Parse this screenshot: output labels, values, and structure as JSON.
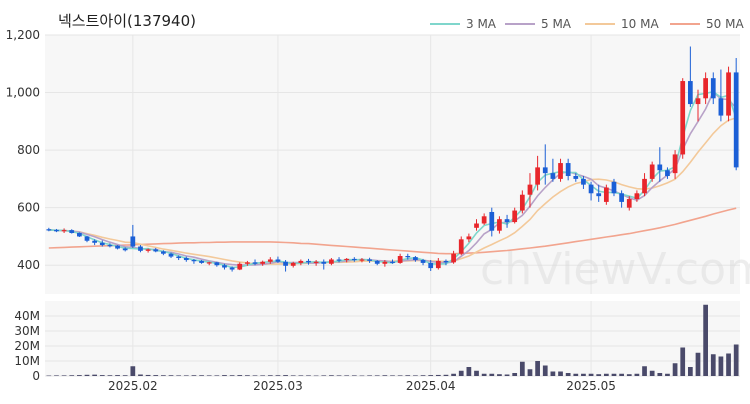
{
  "chart_data": {
    "type": "candlestick",
    "title": "넥스트아이(137940)",
    "watermark": "chViewV.com",
    "price_axis": {
      "min": 300,
      "max": 1200,
      "ticks": [
        400,
        600,
        800,
        1000,
        1200
      ],
      "tick_labels": [
        "400",
        "600",
        "800",
        "1,000",
        "1,200"
      ]
    },
    "volume_axis": {
      "min": 0,
      "max": 50,
      "unit": "M",
      "ticks": [
        0,
        10,
        20,
        30,
        40
      ],
      "tick_labels": [
        "0",
        "10M",
        "20M",
        "30M",
        "40M"
      ]
    },
    "x_ticks": [
      {
        "index": 11,
        "label": "2025.02"
      },
      {
        "index": 30,
        "label": "2025.03"
      },
      {
        "index": 50,
        "label": "2025.04"
      },
      {
        "index": 71,
        "label": "2025.05"
      }
    ],
    "legend": [
      {
        "name": "3 MA",
        "color": "#7fd6cc"
      },
      {
        "name": "5 MA",
        "color": "#b8a2c8"
      },
      {
        "name": "10 MA",
        "color": "#f3c99a"
      },
      {
        "name": "50 MA",
        "color": "#f2a48e"
      }
    ],
    "colors": {
      "up": "#e8262b",
      "down": "#1b5fd6",
      "volume": "#4a4a6a",
      "grid": "#e6e6e6",
      "panel_bg": "#f7f7f7"
    },
    "candles": [
      [
        525,
        530,
        518,
        523
      ],
      [
        523,
        526,
        515,
        518
      ],
      [
        518,
        528,
        512,
        522
      ],
      [
        522,
        525,
        510,
        512
      ],
      [
        512,
        514,
        498,
        500
      ],
      [
        500,
        502,
        480,
        485
      ],
      [
        485,
        490,
        470,
        478
      ],
      [
        478,
        486,
        465,
        470
      ],
      [
        470,
        476,
        462,
        468
      ],
      [
        468,
        470,
        455,
        458
      ],
      [
        458,
        462,
        448,
        452
      ],
      [
        500,
        540,
        460,
        465
      ],
      [
        465,
        470,
        445,
        450
      ],
      [
        450,
        458,
        444,
        455
      ],
      [
        455,
        460,
        445,
        448
      ],
      [
        448,
        452,
        435,
        440
      ],
      [
        440,
        444,
        425,
        430
      ],
      [
        430,
        434,
        418,
        425
      ],
      [
        425,
        430,
        412,
        418
      ],
      [
        418,
        422,
        405,
        415
      ],
      [
        415,
        418,
        405,
        408
      ],
      [
        408,
        412,
        400,
        410
      ],
      [
        410,
        412,
        395,
        400
      ],
      [
        400,
        405,
        385,
        392
      ],
      [
        392,
        396,
        378,
        385
      ],
      [
        385,
        410,
        383,
        405
      ],
      [
        405,
        415,
        398,
        410
      ],
      [
        410,
        420,
        400,
        405
      ],
      [
        405,
        416,
        398,
        412
      ],
      [
        412,
        428,
        405,
        420
      ],
      [
        420,
        430,
        408,
        412
      ],
      [
        412,
        418,
        378,
        398
      ],
      [
        398,
        412,
        392,
        408
      ],
      [
        408,
        420,
        400,
        415
      ],
      [
        415,
        422,
        402,
        410
      ],
      [
        410,
        418,
        398,
        412
      ],
      [
        412,
        420,
        385,
        405
      ],
      [
        405,
        425,
        400,
        420
      ],
      [
        420,
        428,
        410,
        418
      ],
      [
        418,
        425,
        410,
        422
      ],
      [
        422,
        428,
        412,
        418
      ],
      [
        418,
        425,
        410,
        420
      ],
      [
        420,
        426,
        408,
        415
      ],
      [
        415,
        418,
        400,
        405
      ],
      [
        405,
        418,
        395,
        412
      ],
      [
        412,
        420,
        405,
        408
      ],
      [
        408,
        440,
        405,
        432
      ],
      [
        432,
        440,
        420,
        428
      ],
      [
        428,
        432,
        412,
        418
      ],
      [
        418,
        422,
        400,
        408
      ],
      [
        408,
        418,
        380,
        390
      ],
      [
        390,
        425,
        385,
        415
      ],
      [
        415,
        420,
        400,
        410
      ],
      [
        410,
        450,
        405,
        440
      ],
      [
        440,
        500,
        435,
        490
      ],
      [
        490,
        510,
        480,
        500
      ],
      [
        530,
        560,
        520,
        545
      ],
      [
        545,
        580,
        540,
        570
      ],
      [
        585,
        600,
        500,
        520
      ],
      [
        520,
        570,
        510,
        560
      ],
      [
        560,
        575,
        530,
        550
      ],
      [
        550,
        600,
        545,
        590
      ],
      [
        590,
        660,
        580,
        645
      ],
      [
        645,
        720,
        600,
        680
      ],
      [
        680,
        780,
        660,
        740
      ],
      [
        740,
        820,
        680,
        720
      ],
      [
        720,
        770,
        690,
        700
      ],
      [
        700,
        770,
        690,
        755
      ],
      [
        755,
        770,
        695,
        710
      ],
      [
        710,
        720,
        690,
        700
      ],
      [
        700,
        710,
        665,
        680
      ],
      [
        680,
        690,
        625,
        650
      ],
      [
        650,
        680,
        620,
        640
      ],
      [
        620,
        680,
        610,
        670
      ],
      [
        690,
        700,
        640,
        650
      ],
      [
        650,
        660,
        600,
        620
      ],
      [
        600,
        640,
        590,
        630
      ],
      [
        630,
        660,
        620,
        650
      ],
      [
        650,
        720,
        640,
        700
      ],
      [
        700,
        760,
        690,
        750
      ],
      [
        750,
        810,
        690,
        730
      ],
      [
        730,
        740,
        700,
        710
      ],
      [
        720,
        800,
        700,
        785
      ],
      [
        785,
        1050,
        770,
        1040
      ],
      [
        1040,
        1160,
        950,
        960
      ],
      [
        960,
        1010,
        900,
        980
      ],
      [
        980,
        1070,
        960,
        1050
      ],
      [
        1050,
        1070,
        960,
        980
      ],
      [
        980,
        1080,
        900,
        920
      ],
      [
        920,
        1090,
        900,
        1070
      ],
      [
        1070,
        1120,
        730,
        740
      ]
    ],
    "volumes": [
      0.3,
      0.4,
      0.4,
      0.5,
      0.6,
      0.8,
      0.9,
      0.6,
      0.5,
      0.6,
      0.5,
      6.5,
      1.0,
      0.7,
      0.6,
      0.5,
      0.5,
      0.4,
      0.4,
      0.5,
      0.5,
      0.4,
      0.4,
      0.6,
      0.5,
      0.6,
      0.5,
      0.4,
      0.4,
      0.5,
      0.5,
      0.6,
      0.4,
      0.4,
      0.4,
      0.3,
      0.4,
      0.5,
      0.4,
      0.4,
      0.4,
      0.3,
      0.4,
      0.4,
      0.5,
      0.4,
      0.4,
      0.5,
      0.4,
      0.5,
      0.6,
      0.7,
      0.8,
      1.5,
      3.5,
      6.0,
      3.5,
      1.5,
      1.5,
      1.2,
      1.0,
      2.0,
      9.5,
      4.5,
      10.0,
      7.0,
      3.0,
      3.0,
      2.0,
      1.5,
      1.5,
      1.5,
      1.2,
      1.5,
      1.5,
      1.5,
      1.2,
      1.5,
      6.5,
      3.5,
      2.0,
      1.5,
      8.5,
      19.0,
      6.0,
      15.5,
      47.5,
      14.5,
      13.0,
      15.0,
      21.0
    ],
    "ma3": [
      523,
      521,
      521,
      517,
      511,
      499,
      488,
      478,
      472,
      465,
      459,
      458,
      456,
      458,
      451,
      448,
      441,
      432,
      424,
      419,
      414,
      411,
      406,
      400,
      392,
      394,
      400,
      407,
      409,
      413,
      415,
      410,
      406,
      407,
      411,
      412,
      409,
      412,
      414,
      420,
      419,
      420,
      418,
      413,
      411,
      408,
      417,
      423,
      426,
      418,
      405,
      404,
      405,
      422,
      447,
      477,
      512,
      538,
      545,
      550,
      543,
      567,
      595,
      638,
      688,
      713,
      720,
      725,
      722,
      722,
      697,
      677,
      657,
      653,
      653,
      647,
      640,
      633,
      660,
      700,
      727,
      730,
      742,
      845,
      938,
      993,
      997,
      1003,
      983,
      990,
      910
    ],
    "ma5": [
      523,
      521,
      521,
      518,
      515,
      507,
      499,
      489,
      480,
      472,
      464,
      462,
      458,
      455,
      455,
      447,
      445,
      439,
      432,
      428,
      421,
      415,
      410,
      405,
      402,
      400,
      401,
      401,
      403,
      407,
      412,
      409,
      409,
      409,
      408,
      407,
      410,
      412,
      412,
      415,
      418,
      420,
      419,
      416,
      415,
      412,
      414,
      417,
      419,
      418,
      413,
      410,
      408,
      412,
      431,
      451,
      478,
      509,
      525,
      547,
      549,
      554,
      573,
      605,
      641,
      670,
      697,
      719,
      725,
      717,
      709,
      699,
      676,
      668,
      658,
      646,
      634,
      626,
      642,
      670,
      693,
      713,
      735,
      802,
      857,
      899,
      943,
      1002,
      978,
      976,
      946
    ],
    "ma10": [
      523,
      521,
      521,
      519,
      516,
      510,
      504,
      497,
      491,
      486,
      480,
      479,
      473,
      467,
      462,
      456,
      452,
      447,
      442,
      438,
      434,
      430,
      425,
      420,
      415,
      411,
      408,
      405,
      404,
      404,
      404,
      405,
      405,
      406,
      407,
      408,
      409,
      410,
      410,
      411,
      412,
      414,
      415,
      414,
      414,
      414,
      415,
      415,
      416,
      416,
      415,
      414,
      413,
      414,
      423,
      432,
      446,
      460,
      472,
      485,
      497,
      513,
      535,
      559,
      590,
      614,
      637,
      656,
      672,
      684,
      690,
      698,
      699,
      696,
      690,
      680,
      672,
      666,
      664,
      668,
      676,
      686,
      699,
      725,
      758,
      793,
      825,
      858,
      885,
      904,
      912
    ],
    "ma50": [
      460,
      461,
      462,
      463,
      464,
      465,
      466,
      467,
      468,
      469,
      470,
      471,
      472,
      473,
      474,
      475,
      476,
      477,
      478,
      478,
      479,
      479,
      480,
      480,
      481,
      481,
      481,
      481,
      481,
      481,
      480,
      479,
      478,
      476,
      475,
      473,
      471,
      469,
      467,
      465,
      463,
      461,
      459,
      457,
      455,
      453,
      451,
      449,
      447,
      445,
      443,
      441,
      440,
      440,
      441,
      442,
      443,
      445,
      447,
      449,
      451,
      454,
      457,
      460,
      463,
      466,
      470,
      474,
      478,
      482,
      486,
      490,
      494,
      498,
      502,
      506,
      510,
      515,
      520,
      525,
      530,
      536,
      542,
      549,
      556,
      563,
      570,
      578,
      585,
      592,
      598
    ]
  }
}
